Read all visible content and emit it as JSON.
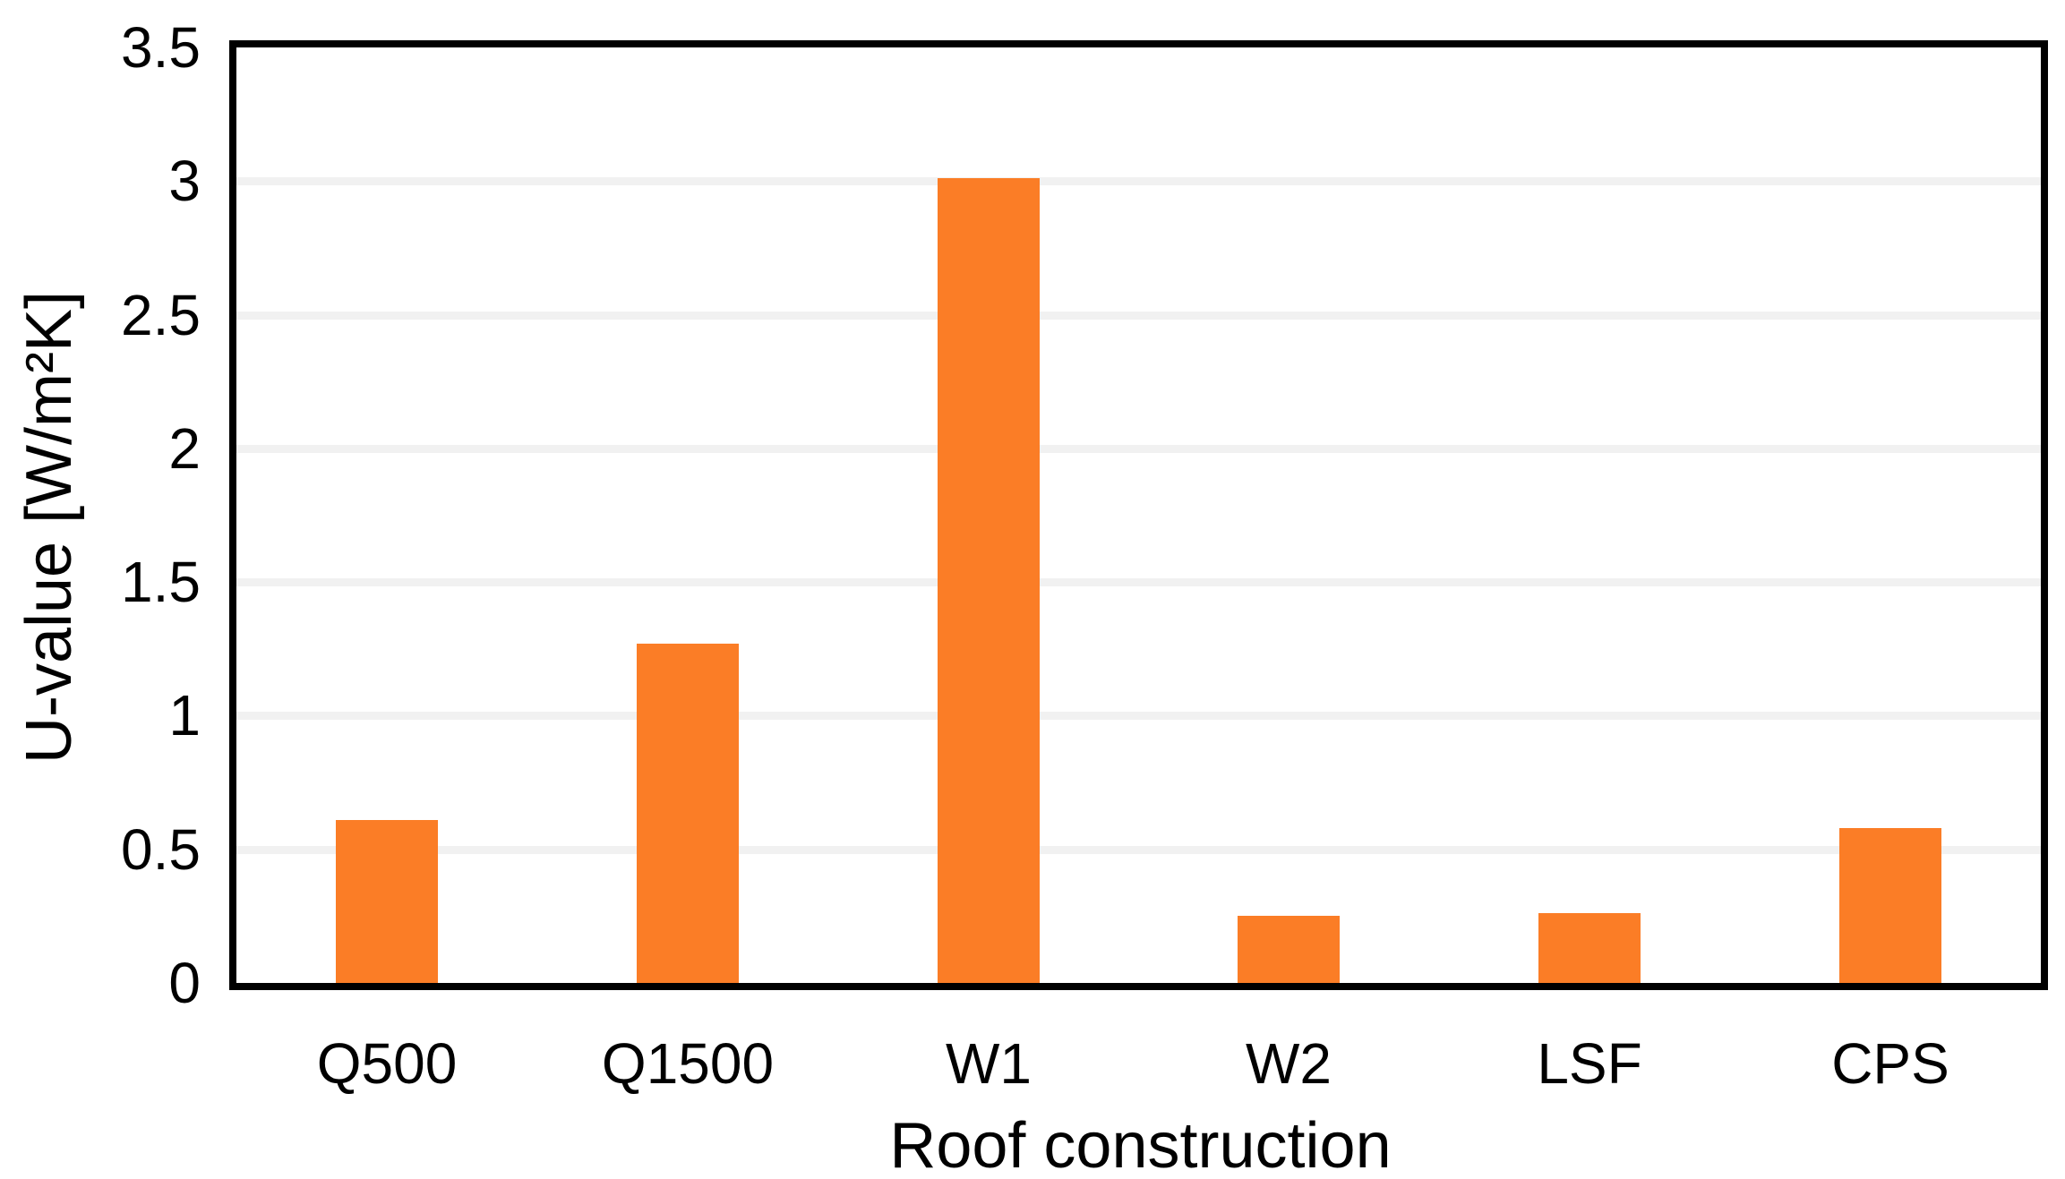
{
  "chart_data": {
    "type": "bar",
    "title": "",
    "categories": [
      "Q500",
      "Q1500",
      "W1",
      "W2",
      "LSF",
      "CPS"
    ],
    "values": [
      0.61,
      1.27,
      3.01,
      0.25,
      0.26,
      0.58
    ],
    "xlabel": "Roof construction",
    "ylabel": "U-value [W/m²K]",
    "ylim": [
      0,
      3.5
    ],
    "ytick_step": 0.5,
    "yticks": [
      "0",
      "0.5",
      "1",
      "1.5",
      "2",
      "2.5",
      "3",
      "3.5"
    ],
    "grid": "horizontal-major",
    "legend": "none",
    "bar_color": "#FB7D26",
    "gridline_color": "#F1F1F1",
    "axis_color": "#000000",
    "background_color": "#FFFFFF"
  }
}
